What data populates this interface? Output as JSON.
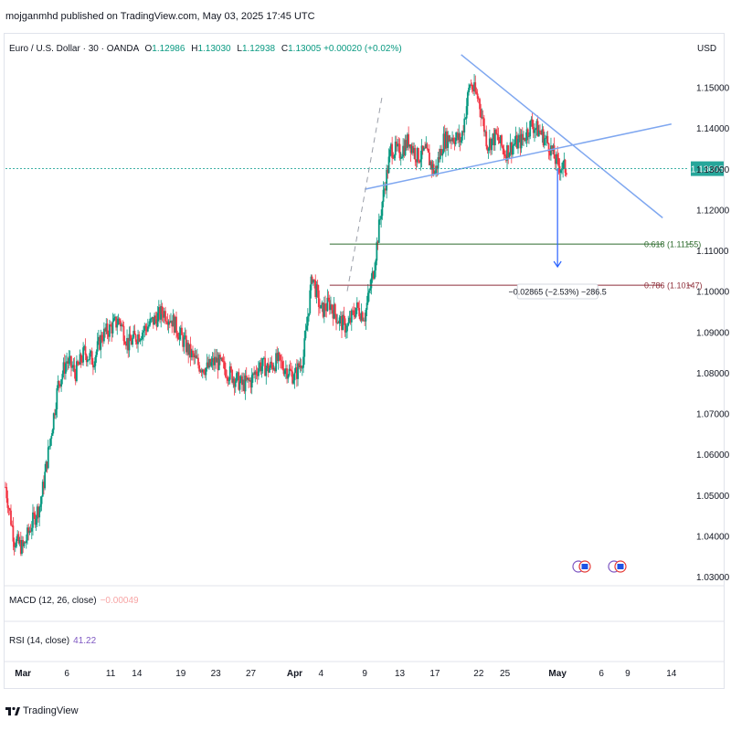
{
  "header": {
    "credit": "mojganmhd published on TradingView.com, May 03, 2025 17:45 UTC"
  },
  "legend": {
    "title": "Euro / U.S. Dollar · 30 · OANDA",
    "o_label": "O",
    "o": "1.12986",
    "h_label": "H",
    "h": "1.13030",
    "l_label": "L",
    "l": "1.12938",
    "c_label": "C",
    "c": "1.13005",
    "change": "+0.00020 (+0.02%)"
  },
  "currency": "USD",
  "price_tag": "1.13005",
  "fib": [
    {
      "label": "0.618 (1.11155)",
      "color": "#2e6b2e"
    },
    {
      "label": "0.786 (1.10147)",
      "color": "#8e2f3a"
    }
  ],
  "measure": {
    "label": "−0.02865 (−2.53%) −286.5"
  },
  "indicators": {
    "macd": {
      "label": "MACD (12, 26, close)",
      "value": "−0.00049"
    },
    "rsi": {
      "label": "RSI (14, close)",
      "value": "41.22"
    }
  },
  "footer": {
    "brand": "TradingView"
  },
  "colors": {
    "up": "#089981",
    "down": "#f23645",
    "trend": "#7fa7f0",
    "last": "#26a69a"
  },
  "chart_data": {
    "type": "candlestick",
    "symbol": "EURUSD",
    "timeframe": "30",
    "y_ticks": [
      "1.15000",
      "1.14000",
      "1.13000",
      "1.12000",
      "1.11000",
      "1.10000",
      "1.09000",
      "1.08000",
      "1.07000",
      "1.06000",
      "1.05000",
      "1.04000",
      "1.03000"
    ],
    "ylim": [
      1.028,
      1.162
    ],
    "x_ticks": [
      "Mar",
      "6",
      "11",
      "14",
      "19",
      "23",
      "27",
      "Apr",
      "4",
      "9",
      "13",
      "17",
      "22",
      "25",
      "May",
      "6",
      "9",
      "14"
    ],
    "x_tick_dates": [
      "2025-03-01",
      "2025-03-06",
      "2025-03-11",
      "2025-03-14",
      "2025-03-19",
      "2025-03-23",
      "2025-03-27",
      "2025-04-01",
      "2025-04-04",
      "2025-04-09",
      "2025-04-13",
      "2025-04-17",
      "2025-04-22",
      "2025-04-25",
      "2025-05-01",
      "2025-05-06",
      "2025-05-09",
      "2025-05-14"
    ],
    "path": [
      [
        "2025-02-27",
        1.052
      ],
      [
        "2025-02-28",
        1.039
      ],
      [
        "2025-03-01",
        1.037
      ],
      [
        "2025-03-02",
        1.043
      ],
      [
        "2025-03-03",
        1.048
      ],
      [
        "2025-03-04",
        1.062
      ],
      [
        "2025-03-05",
        1.077
      ],
      [
        "2025-03-06",
        1.083
      ],
      [
        "2025-03-07",
        1.08
      ],
      [
        "2025-03-08",
        1.085
      ],
      [
        "2025-03-09",
        1.083
      ],
      [
        "2025-03-10",
        1.089
      ],
      [
        "2025-03-11",
        1.091
      ],
      [
        "2025-03-12",
        1.093
      ],
      [
        "2025-03-13",
        1.087
      ],
      [
        "2025-03-14",
        1.089
      ],
      [
        "2025-03-15",
        1.091
      ],
      [
        "2025-03-16",
        1.093
      ],
      [
        "2025-03-17",
        1.095
      ],
      [
        "2025-03-18",
        1.093
      ],
      [
        "2025-03-19",
        1.089
      ],
      [
        "2025-03-20",
        1.085
      ],
      [
        "2025-03-21",
        1.082
      ],
      [
        "2025-03-22",
        1.081
      ],
      [
        "2025-03-23",
        1.083
      ],
      [
        "2025-03-24",
        1.081
      ],
      [
        "2025-03-25",
        1.079
      ],
      [
        "2025-03-26",
        1.077
      ],
      [
        "2025-03-27",
        1.078
      ],
      [
        "2025-03-28",
        1.082
      ],
      [
        "2025-03-29",
        1.081
      ],
      [
        "2025-03-30",
        1.083
      ],
      [
        "2025-03-31",
        1.081
      ],
      [
        "2025-04-01",
        1.079
      ],
      [
        "2025-04-02",
        1.084
      ],
      [
        "2025-04-03",
        1.104
      ],
      [
        "2025-04-04",
        1.095
      ],
      [
        "2025-04-05",
        1.097
      ],
      [
        "2025-04-06",
        1.093
      ],
      [
        "2025-04-07",
        1.091
      ],
      [
        "2025-04-08",
        1.096
      ],
      [
        "2025-04-09",
        1.094
      ],
      [
        "2025-04-10",
        1.105
      ],
      [
        "2025-04-11",
        1.122
      ],
      [
        "2025-04-12",
        1.135
      ],
      [
        "2025-04-13",
        1.134
      ],
      [
        "2025-04-14",
        1.137
      ],
      [
        "2025-04-15",
        1.133
      ],
      [
        "2025-04-16",
        1.134
      ],
      [
        "2025-04-17",
        1.129
      ],
      [
        "2025-04-18",
        1.137
      ],
      [
        "2025-04-19",
        1.138
      ],
      [
        "2025-04-20",
        1.137
      ],
      [
        "2025-04-21",
        1.151
      ],
      [
        "2025-04-22",
        1.147
      ],
      [
        "2025-04-23",
        1.136
      ],
      [
        "2025-04-24",
        1.138
      ],
      [
        "2025-04-25",
        1.134
      ],
      [
        "2025-04-26",
        1.136
      ],
      [
        "2025-04-27",
        1.137
      ],
      [
        "2025-04-28",
        1.141
      ],
      [
        "2025-04-29",
        1.139
      ],
      [
        "2025-04-30",
        1.136
      ],
      [
        "2025-05-01",
        1.131
      ],
      [
        "2025-05-02",
        1.13
      ]
    ],
    "lines": {
      "descending_trendline": [
        [
          "2025-04-20",
          1.158
        ],
        [
          "2025-05-13",
          1.118
        ]
      ],
      "ascending_trendline": [
        [
          "2025-04-09",
          1.125
        ],
        [
          "2025-05-14",
          1.141
        ]
      ],
      "dashed_projection": [
        [
          "2025-04-07",
          1.1
        ],
        [
          "2025-04-11",
          1.148
        ]
      ],
      "fib_0_618": 1.11155,
      "fib_0_786": 1.10147,
      "last_price": 1.13005,
      "measure_arrow": [
        [
          "2025-05-01",
          1.13
        ],
        [
          "2025-05-01",
          1.1015
        ]
      ]
    },
    "grid": false,
    "legend_position": "top-left"
  }
}
